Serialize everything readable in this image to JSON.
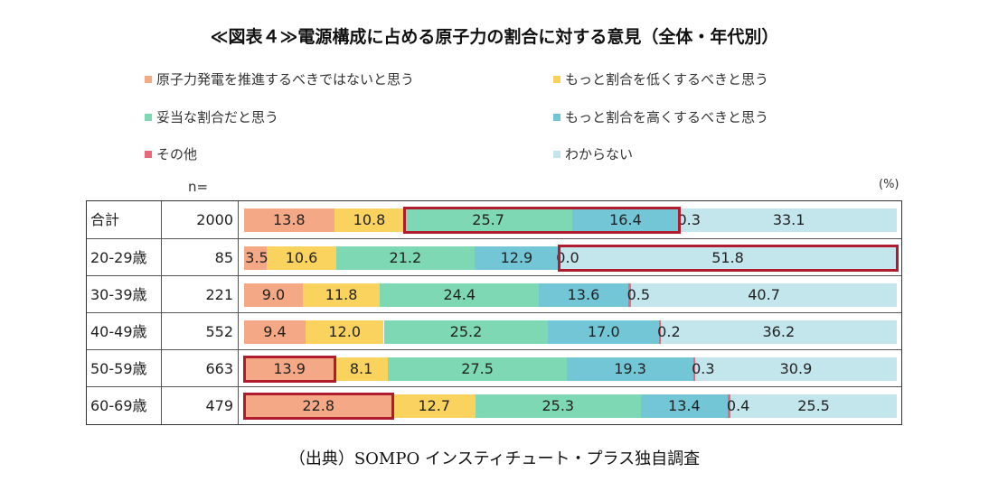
{
  "title": "≪図表４≫電源構成に占める原子力の割合に対する意見（全体・年代別）",
  "n_label": "n=",
  "unit_label": "(%)",
  "source": "（出典）SOMPO インスティチュート・プラス独自調査",
  "colors": {
    "oppose": "#f4a885",
    "lower": "#f9d35d",
    "appropriate": "#7ed8b3",
    "higher": "#72c6d6",
    "other": "#e8697a",
    "unknown": "#c3e5ec",
    "highlight": "#b01c2e"
  },
  "chart_data": {
    "type": "bar",
    "orientation": "horizontal",
    "stacked": true,
    "unit": "%",
    "categories": [
      "合計",
      "20-29歳",
      "30-39歳",
      "40-49歳",
      "50-59歳",
      "60-69歳"
    ],
    "n": [
      "2000",
      "85",
      "221",
      "552",
      "663",
      "479"
    ],
    "series": [
      {
        "name": "原子力発電を推進するべきではないと思う",
        "color_key": "oppose",
        "values": [
          13.8,
          3.5,
          9.0,
          9.4,
          13.9,
          22.8
        ]
      },
      {
        "name": "もっと割合を低くするべきと思う",
        "color_key": "lower",
        "values": [
          10.8,
          10.6,
          11.8,
          12.0,
          8.1,
          12.7
        ]
      },
      {
        "name": "妥当な割合だと思う",
        "color_key": "appropriate",
        "values": [
          25.7,
          21.2,
          24.4,
          25.2,
          27.5,
          25.3
        ]
      },
      {
        "name": "もっと割合を高くするべきと思う",
        "color_key": "higher",
        "values": [
          16.4,
          12.9,
          13.6,
          17.0,
          19.3,
          13.4
        ]
      },
      {
        "name": "その他",
        "color_key": "other",
        "values": [
          0.3,
          0.0,
          0.5,
          0.2,
          0.3,
          0.4
        ]
      },
      {
        "name": "わからない",
        "color_key": "unknown",
        "values": [
          33.1,
          51.8,
          40.7,
          36.2,
          30.9,
          25.5
        ]
      }
    ],
    "value_labels": [
      [
        "13.8",
        "10.8",
        "25.7",
        "16.4",
        "0.3",
        "33.1"
      ],
      [
        "3.5",
        "10.6",
        "21.2",
        "12.9",
        "0.0",
        "51.8"
      ],
      [
        "9.0",
        "11.8",
        "24.4",
        "13.6",
        "0.5",
        "40.7"
      ],
      [
        "9.4",
        "12.0",
        "25.2",
        "17.0",
        "0.2",
        "36.2"
      ],
      [
        "13.9",
        "8.1",
        "27.5",
        "19.3",
        "0.3",
        "30.9"
      ],
      [
        "22.8",
        "12.7",
        "25.3",
        "13.4",
        "0.4",
        "25.5"
      ]
    ],
    "highlights": [
      {
        "row": 0,
        "from": 2,
        "to": 3
      },
      {
        "row": 1,
        "from": 4,
        "to": 5
      },
      {
        "row": 4,
        "from": 0,
        "to": 0
      },
      {
        "row": 5,
        "from": 0,
        "to": 0
      }
    ],
    "legend": "top"
  }
}
